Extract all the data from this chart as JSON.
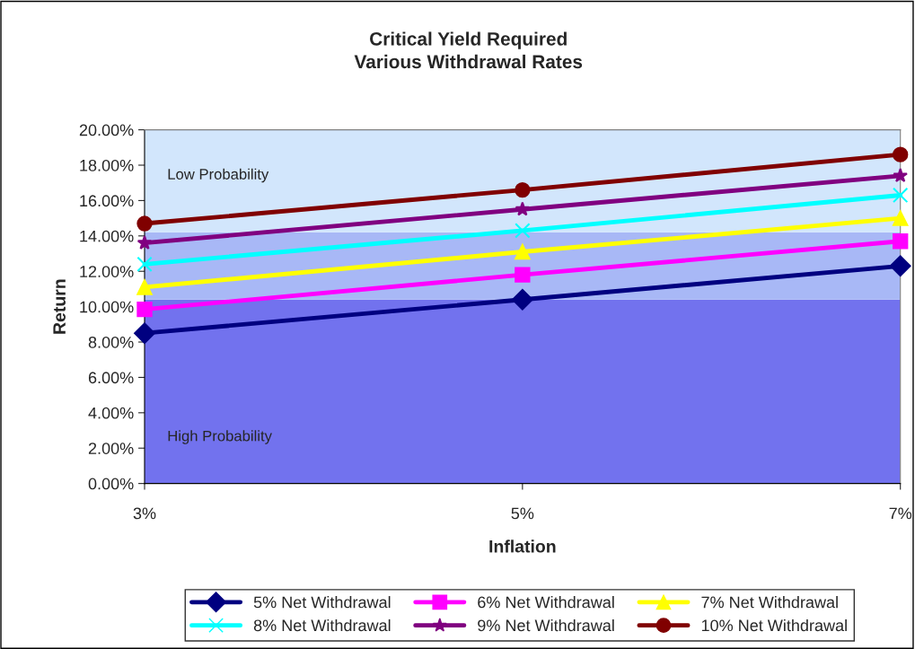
{
  "chart_data": {
    "type": "line",
    "title": "Critical Yield Required\nVarious Withdrawal Rates",
    "xlabel": "Inflation",
    "ylabel": "Return",
    "categories": [
      "3%",
      "5%",
      "7%"
    ],
    "series": [
      {
        "name": "5% Net Withdrawal",
        "color": "#000080",
        "marker": "diamond",
        "values": [
          8.5,
          10.4,
          12.3
        ]
      },
      {
        "name": "6% Net Withdrawal",
        "color": "#ff00ff",
        "marker": "square",
        "values": [
          9.85,
          11.8,
          13.7
        ]
      },
      {
        "name": "7% Net Withdrawal",
        "color": "#ffff00",
        "marker": "triangle",
        "values": [
          11.1,
          13.1,
          15.0
        ]
      },
      {
        "name": "8% Net Withdrawal",
        "color": "#00ffff",
        "marker": "cross",
        "values": [
          12.4,
          14.3,
          16.3
        ]
      },
      {
        "name": "9% Net Withdrawal",
        "color": "#800080",
        "marker": "star",
        "values": [
          13.6,
          15.5,
          17.4
        ]
      },
      {
        "name": "10% Net Withdrawal",
        "color": "#800000",
        "marker": "circle",
        "values": [
          14.7,
          16.6,
          18.6
        ]
      }
    ],
    "ylim": [
      0,
      20
    ],
    "yticks": [
      {
        "value": 0,
        "label": "0.00%"
      },
      {
        "value": 2,
        "label": "2.00%"
      },
      {
        "value": 4,
        "label": "4.00%"
      },
      {
        "value": 6,
        "label": "6.00%"
      },
      {
        "value": 8,
        "label": "8.00%"
      },
      {
        "value": 10,
        "label": "10.00%"
      },
      {
        "value": 12,
        "label": "12.00%"
      },
      {
        "value": 14,
        "label": "14.00%"
      },
      {
        "value": 16,
        "label": "16.00%"
      },
      {
        "value": 18,
        "label": "18.00%"
      },
      {
        "value": 20,
        "label": "20.00%"
      }
    ],
    "bands": [
      {
        "axis": "y",
        "from": 0,
        "to": 10.4,
        "color": "#7272ee"
      },
      {
        "axis": "y",
        "from": 10.4,
        "to": 14.2,
        "color": "#a8b8f6"
      },
      {
        "axis": "y",
        "from": 14.2,
        "to": 20,
        "color": "#d2e6fc"
      }
    ],
    "annotations": [
      "Low Probability",
      "High Probability"
    ],
    "grid": false,
    "legend": "bottom",
    "line_style": "solid"
  }
}
